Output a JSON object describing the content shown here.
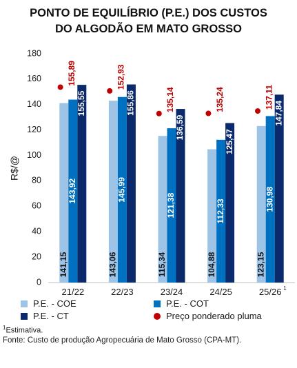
{
  "header": {
    "title_line1": "PONTO DE EQUILÍBRIO (P.E.) DOS CUSTOS",
    "title_line2": "DO ALGODÃO EM MATO GROSSO"
  },
  "footnote": {
    "mark": "1",
    "text": "Estimativa."
  },
  "source": "Fonte: Custo de produção Agropecuária de Mato Grosso (CPA-MT).",
  "colors": {
    "coe": "#9dc3e6",
    "cot": "#0070c0",
    "ct": "#0b2a6b",
    "price": "#c00000",
    "price_label": "#c00000"
  },
  "chart_data": {
    "type": "bar",
    "title": "PONTO DE EQUILÍBRIO (P.E.) DOS CUSTOS DO ALGODÃO EM MATO GROSSO",
    "ylabel": "R$/@",
    "xlabel": "",
    "ylim": [
      0,
      180
    ],
    "yticks": [
      0,
      20,
      40,
      60,
      80,
      100,
      120,
      140,
      160,
      180
    ],
    "categories": [
      "21/22",
      "22/23",
      "23/24",
      "24/25",
      "25/26"
    ],
    "category_superscripts": [
      "",
      "",
      "",
      "",
      "1"
    ],
    "series": [
      {
        "name": "P.E. - COE",
        "values": [
          141.15,
          143.06,
          115.34,
          104.88,
          123.15
        ],
        "labels": [
          "141,15",
          "143,06",
          "115,34",
          "104,88",
          "123,15"
        ]
      },
      {
        "name": "P.E. - COT",
        "values": [
          143.92,
          145.99,
          121.38,
          112.33,
          130.98
        ],
        "labels": [
          "143,92",
          "145,99",
          "121,38",
          "112,33",
          "130,98"
        ]
      },
      {
        "name": "P.E. - CT",
        "values": [
          155.55,
          155.86,
          136.59,
          125.47,
          147.84
        ],
        "labels": [
          "155,55",
          "155,86",
          "136,59",
          "125,47",
          "147,84"
        ]
      }
    ],
    "price_series": {
      "name": "Preço ponderado pluma",
      "values": [
        155.89,
        152.93,
        135.14,
        135.24,
        137.11
      ],
      "labels": [
        "155,89",
        "152,93",
        "135,14",
        "135,24",
        "137,11"
      ]
    },
    "grid": false,
    "legend": "bottom"
  }
}
